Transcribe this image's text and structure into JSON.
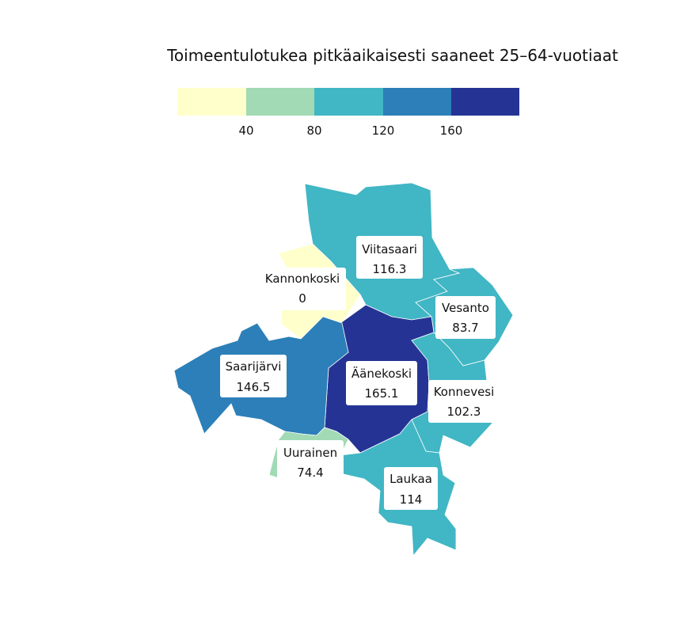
{
  "title": "Toimeentulotukea pitkäaikaisesti saaneet 25–64-vuotiaat",
  "legend": {
    "bins": [
      "#ffffcc",
      "#a1dab4",
      "#41b6c4",
      "#2c7fb8",
      "#253494"
    ],
    "ticks": [
      "40",
      "80",
      "120",
      "160"
    ]
  },
  "municipalities": [
    {
      "id": "viitasaari",
      "name": "Viitasaari",
      "value": "116.3",
      "color": "#41b6c4"
    },
    {
      "id": "kannonkoski",
      "name": "Kannonkoski",
      "value": "0",
      "color": "#ffffcc"
    },
    {
      "id": "vesanto",
      "name": "Vesanto",
      "value": "83.7",
      "color": "#41b6c4"
    },
    {
      "id": "saarijarvi",
      "name": "Saarijärvi",
      "value": "146.5",
      "color": "#2c7fb8"
    },
    {
      "id": "aanekoski",
      "name": "Äänekoski",
      "value": "165.1",
      "color": "#253494"
    },
    {
      "id": "konnevesi",
      "name": "Konnevesi",
      "value": "102.3",
      "color": "#41b6c4"
    },
    {
      "id": "uurainen",
      "name": "Uurainen",
      "value": "74.4",
      "color": "#a1dab4"
    },
    {
      "id": "laukaa",
      "name": "Laukaa",
      "value": "114",
      "color": "#41b6c4"
    }
  ]
}
